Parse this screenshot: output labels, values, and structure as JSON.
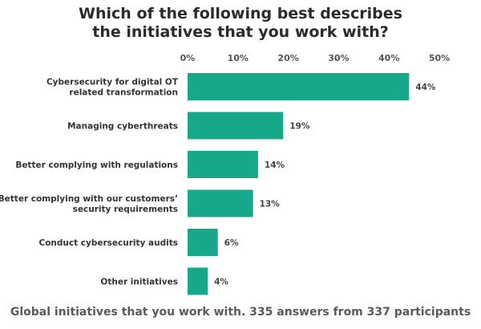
{
  "chart_data": {
    "type": "bar",
    "orientation": "horizontal",
    "title_lines": [
      "Which of the following best describes",
      "the initiatives that you work with?"
    ],
    "categories": [
      [
        "Cybersecurity for digital OT",
        "related transformation"
      ],
      [
        "Managing cyberthreats"
      ],
      [
        "Better complying with regulations"
      ],
      [
        "Better complying with our customers’",
        "security requirements"
      ],
      [
        "Conduct cybersecurity audits"
      ],
      [
        "Other initiatives"
      ]
    ],
    "values": [
      44,
      19,
      14,
      13,
      6,
      4
    ],
    "value_labels": [
      "44%",
      "19%",
      "14%",
      "13%",
      "6%",
      "4%"
    ],
    "xticks": [
      0,
      10,
      20,
      30,
      40,
      50
    ],
    "xtick_labels": [
      "0%",
      "10%",
      "20%",
      "30%",
      "40%",
      "50%"
    ],
    "xlim": [
      0,
      50
    ],
    "axis_position": "top",
    "grid": false,
    "bar_color": "#17a88a",
    "caption": "Global initiatives that you work with. 335 answers from 337 participants"
  }
}
